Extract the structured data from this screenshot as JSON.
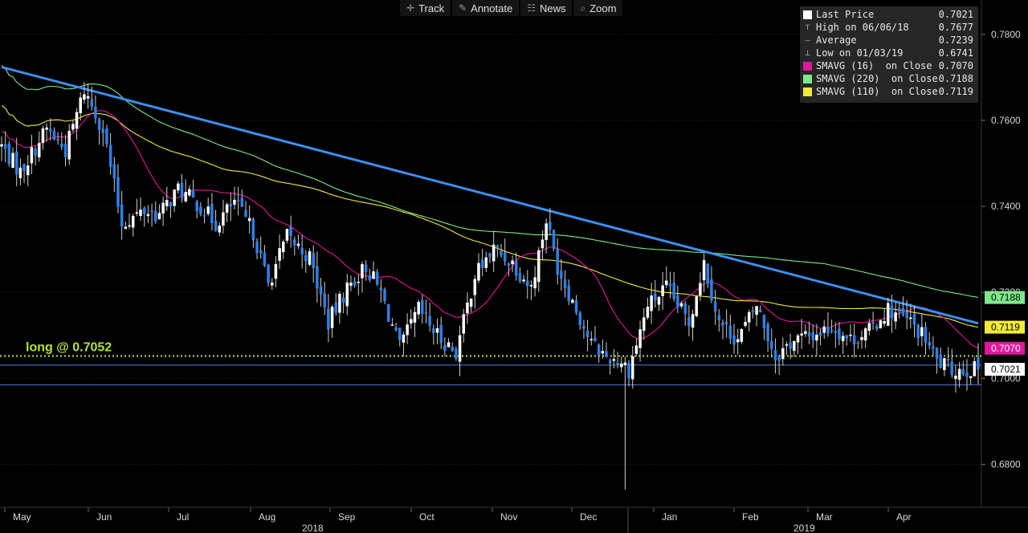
{
  "toolbar": {
    "buttons": [
      {
        "label": "Track",
        "icon": "crosshair-icon"
      },
      {
        "label": "Annotate",
        "icon": "pencil-icon"
      },
      {
        "label": "News",
        "icon": "news-icon"
      },
      {
        "label": "Zoom",
        "icon": "zoom-icon"
      }
    ]
  },
  "legend": {
    "rows": [
      {
        "label": "Last Price",
        "value": "0.7021",
        "color": "#ffffff",
        "kind": "swatch"
      },
      {
        "label": "High on 06/06/18",
        "value": "0.7677",
        "kind": "high"
      },
      {
        "label": "Average",
        "value": "0.7239",
        "kind": "avg"
      },
      {
        "label": "Low on 01/03/19",
        "value": "0.6741",
        "kind": "low"
      },
      {
        "label": "SMAVG (16)  on Close",
        "value": "0.7070",
        "color": "#e0189a",
        "kind": "swatch"
      },
      {
        "label": "SMAVG (220)  on Close",
        "value": "0.7188",
        "color": "#7ee88a",
        "kind": "swatch"
      },
      {
        "label": "SMAVG (110)  on Close",
        "value": "0.7119",
        "color": "#f2ea3a",
        "kind": "swatch"
      }
    ]
  },
  "chart_data": {
    "type": "candlestick",
    "ylim": [
      0.67,
      0.788
    ],
    "yticks": [
      "0.7800",
      "0.7600",
      "0.7400",
      "0.7200",
      "0.7000",
      "0.6800"
    ],
    "months": [
      "May",
      "Jun",
      "Jul",
      "Aug",
      "Sep",
      "Oct",
      "Nov",
      "Dec",
      "Jan",
      "Feb",
      "Mar",
      "Apr"
    ],
    "years": [
      "2018",
      "2019"
    ],
    "last_price": 0.7021,
    "high": 0.7677,
    "low": 0.6741,
    "low_index": 166,
    "annotation": {
      "text": "long @ 0.7052",
      "level": 0.7052,
      "color": "#b6e62e"
    },
    "support_levels": [
      0.7031,
      0.6985
    ],
    "trendline": {
      "start": [
        0,
        0.7724
      ],
      "end": [
        260,
        0.7128
      ],
      "color": "#3d8ff0"
    },
    "series": [
      {
        "name": "SMAVG (16)  on Close",
        "color": "#e0189a",
        "value_label": "0.7070"
      },
      {
        "name": "SMAVG (220)  on Close",
        "color": "#7ee88a",
        "value_label": "0.7188"
      },
      {
        "name": "SMAVG (110)  on Close",
        "color": "#f2ea3a",
        "value_label": "0.7119"
      }
    ],
    "last_label": "0.7021",
    "close_anchors": [
      [
        0,
        0.754
      ],
      [
        5,
        0.748
      ],
      [
        12,
        0.758
      ],
      [
        17,
        0.753
      ],
      [
        22,
        0.767
      ],
      [
        27,
        0.758
      ],
      [
        32,
        0.736
      ],
      [
        38,
        0.739
      ],
      [
        42,
        0.738
      ],
      [
        47,
        0.744
      ],
      [
        53,
        0.74
      ],
      [
        57,
        0.736
      ],
      [
        62,
        0.741
      ],
      [
        67,
        0.734
      ],
      [
        71,
        0.722
      ],
      [
        76,
        0.733
      ],
      [
        82,
        0.728
      ],
      [
        87,
        0.713
      ],
      [
        92,
        0.721
      ],
      [
        97,
        0.726
      ],
      [
        101,
        0.72
      ],
      [
        106,
        0.707
      ],
      [
        111,
        0.716
      ],
      [
        116,
        0.71
      ],
      [
        121,
        0.706
      ],
      [
        126,
        0.724
      ],
      [
        131,
        0.73
      ],
      [
        136,
        0.727
      ],
      [
        141,
        0.721
      ],
      [
        145,
        0.737
      ],
      [
        148,
        0.726
      ],
      [
        152,
        0.718
      ],
      [
        157,
        0.708
      ],
      [
        161,
        0.705
      ],
      [
        165,
        0.704
      ],
      [
        167,
        0.702
      ],
      [
        172,
        0.717
      ],
      [
        177,
        0.721
      ],
      [
        183,
        0.713
      ],
      [
        187,
        0.727
      ],
      [
        191,
        0.713
      ],
      [
        196,
        0.709
      ],
      [
        201,
        0.717
      ],
      [
        206,
        0.705
      ],
      [
        211,
        0.709
      ],
      [
        216,
        0.71
      ],
      [
        221,
        0.712
      ],
      [
        226,
        0.709
      ],
      [
        231,
        0.711
      ],
      [
        236,
        0.716
      ],
      [
        242,
        0.713
      ],
      [
        246,
        0.709
      ],
      [
        249,
        0.704
      ],
      [
        253,
        0.702
      ],
      [
        255,
        0.7021
      ]
    ]
  }
}
